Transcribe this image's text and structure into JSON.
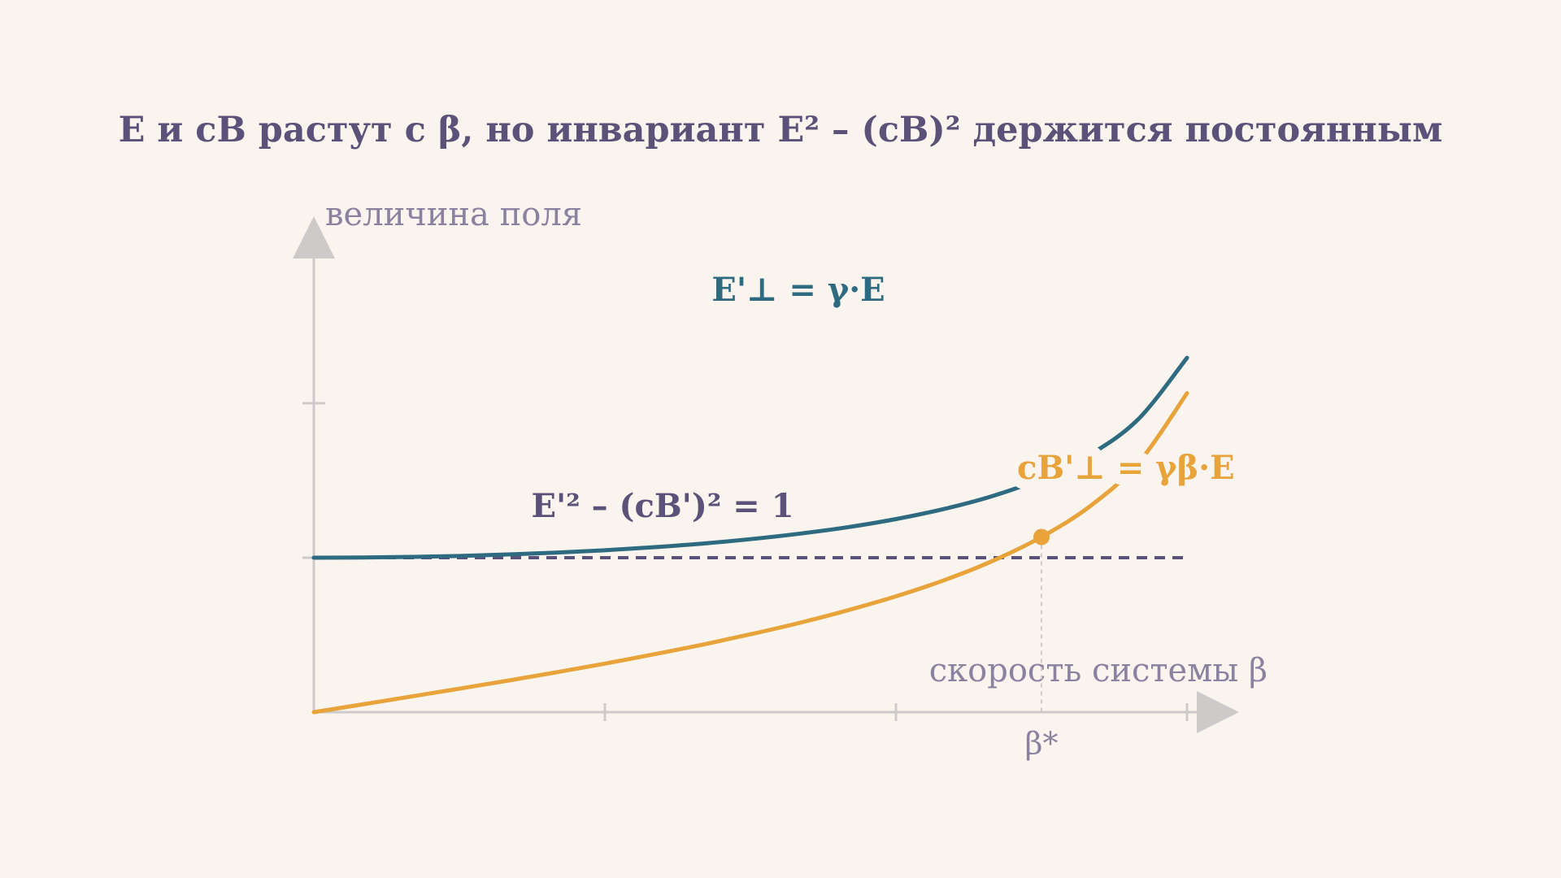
{
  "chart_data": {
    "type": "line",
    "title": "E и cB растут с β, но инвариант E² – (cB)² держится постоянным",
    "x_label": "скорость системы β",
    "y_label": "величина поля",
    "x": [
      0,
      0.05,
      0.1,
      0.15,
      0.2,
      0.25,
      0.3,
      0.35,
      0.4,
      0.45,
      0.5,
      0.55,
      0.6,
      0.65,
      0.7,
      0.75,
      0.8,
      0.85,
      0.9
    ],
    "series": [
      {
        "name": "E'⊥ = γ·E",
        "color": "#2e6a80",
        "values": [
          1,
          1.001,
          1.005,
          1.011,
          1.021,
          1.033,
          1.048,
          1.068,
          1.091,
          1.12,
          1.155,
          1.197,
          1.25,
          1.316,
          1.4,
          1.512,
          1.667,
          1.898,
          2.294
        ]
      },
      {
        "name": "cB'⊥ = γβ·E",
        "color": "#e8a33a",
        "values": [
          0,
          0.05,
          0.101,
          0.152,
          0.204,
          0.258,
          0.314,
          0.374,
          0.436,
          0.504,
          0.577,
          0.659,
          0.75,
          0.855,
          0.98,
          1.134,
          1.333,
          1.614,
          2.065
        ]
      }
    ],
    "xlim": [
      0,
      0.9
    ],
    "ylim": [
      0,
      3
    ],
    "xticks": [
      0.3,
      0.6,
      0.9
    ],
    "yticks": [
      1,
      2
    ],
    "reference_line": {
      "y": 1,
      "label": "E'² – (cB')² = 1",
      "color": "#5a5278"
    },
    "marker": {
      "x": 0.75,
      "y": 1.134,
      "label": "β*",
      "color": "#e8a33a"
    }
  }
}
